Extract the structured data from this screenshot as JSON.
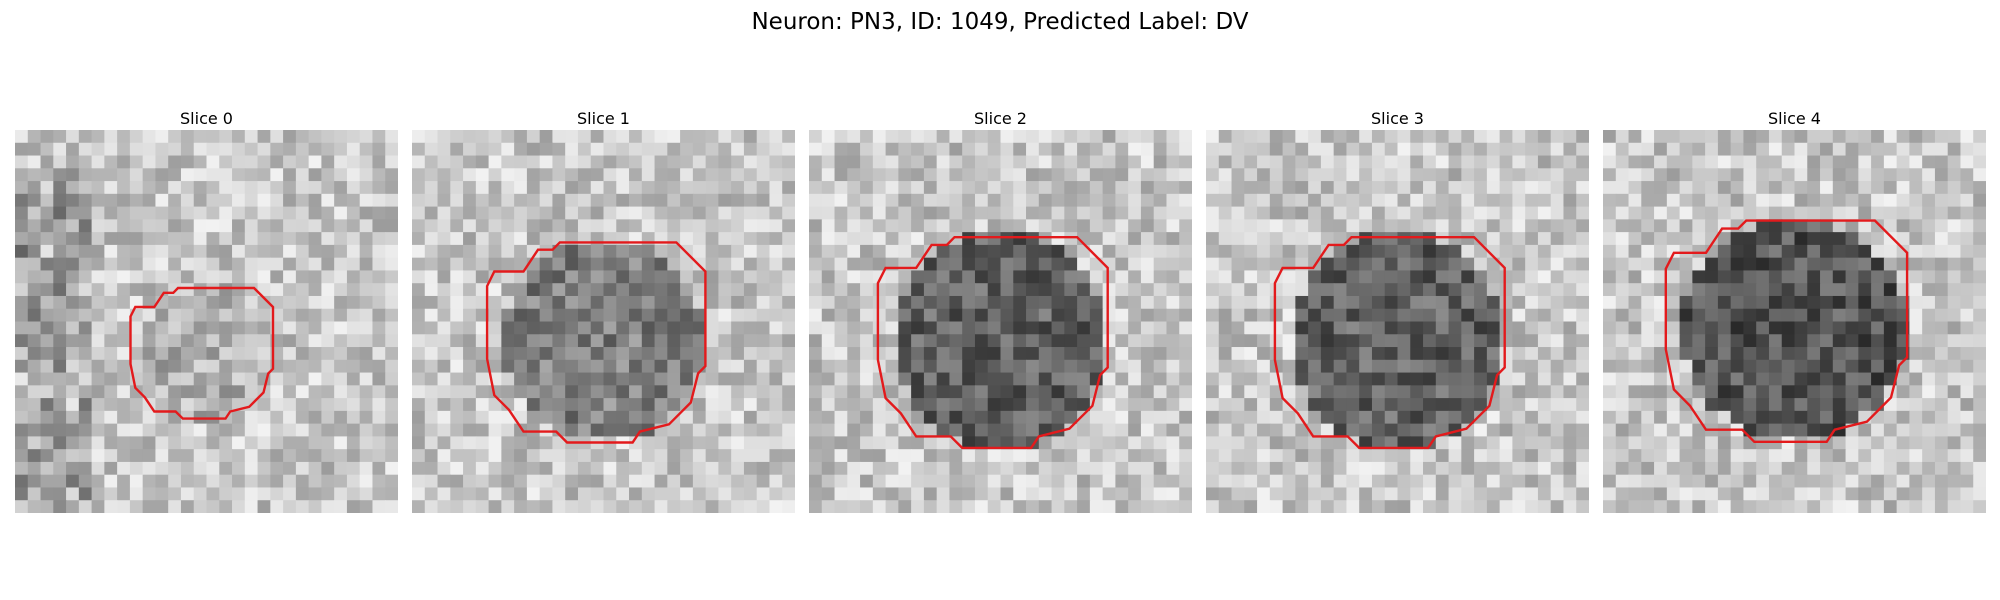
{
  "figure": {
    "title": "Neuron: PN3, ID: 1049, Predicted Label: DV",
    "contour_color": "#e31a1c"
  },
  "slices": [
    {
      "title": "Slice 0",
      "contour_scale": 0.62,
      "center": [
        0.5,
        0.58
      ],
      "dark_center": 0.08,
      "texture_seed": 11
    },
    {
      "title": "Slice 1",
      "contour_scale": 0.95,
      "center": [
        0.5,
        0.55
      ],
      "dark_center": 0.28,
      "texture_seed": 23
    },
    {
      "title": "Slice 2",
      "contour_scale": 1.0,
      "center": [
        0.5,
        0.55
      ],
      "dark_center": 0.4,
      "texture_seed": 37
    },
    {
      "title": "Slice 3",
      "contour_scale": 1.0,
      "center": [
        0.5,
        0.55
      ],
      "dark_center": 0.4,
      "texture_seed": 41
    },
    {
      "title": "Slice 4",
      "contour_scale": 1.05,
      "center": [
        0.5,
        0.52
      ],
      "dark_center": 0.45,
      "texture_seed": 53
    }
  ]
}
